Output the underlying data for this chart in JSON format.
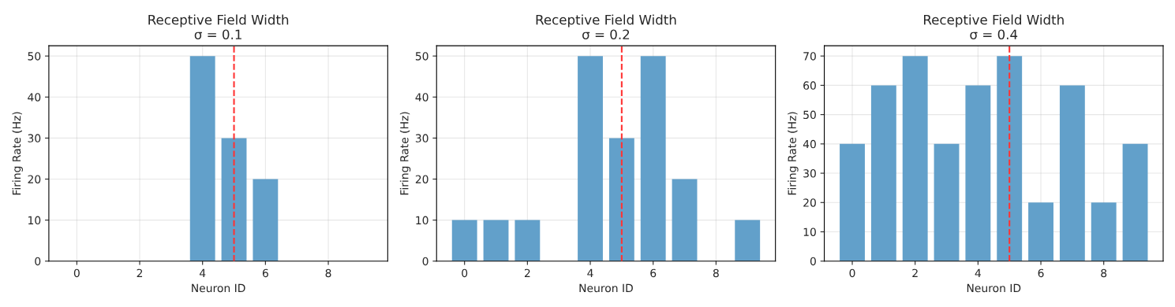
{
  "chart_data": [
    {
      "type": "bar",
      "title": "Receptive Field Width",
      "subtitle": "σ = 0.1",
      "xlabel": "Neuron ID",
      "ylabel": "Firing Rate (Hz)",
      "x": [
        0,
        1,
        2,
        3,
        4,
        5,
        6,
        7,
        8,
        9
      ],
      "values": [
        0,
        0,
        0,
        0,
        50,
        30,
        20,
        0,
        0,
        0
      ],
      "color": "#62a0ca",
      "xlim": [
        -0.89,
        9.89
      ],
      "xticks": [
        0,
        2,
        4,
        6,
        8
      ],
      "ylim": [
        0,
        52.5
      ],
      "yticks": [
        0,
        10,
        20,
        30,
        40,
        50
      ],
      "grid": true,
      "ref_lines": [
        {
          "axis": "x",
          "value": 5,
          "color": "#ff3333",
          "line_style": "dashed"
        }
      ]
    },
    {
      "type": "bar",
      "title": "Receptive Field Width",
      "subtitle": "σ = 0.2",
      "xlabel": "Neuron ID",
      "ylabel": "Firing Rate (Hz)",
      "x": [
        0,
        1,
        2,
        3,
        4,
        5,
        6,
        7,
        8,
        9
      ],
      "values": [
        10,
        10,
        10,
        0,
        50,
        30,
        50,
        20,
        0,
        10
      ],
      "color": "#62a0ca",
      "xlim": [
        -0.89,
        9.89
      ],
      "xticks": [
        0,
        2,
        4,
        6,
        8
      ],
      "ylim": [
        0,
        52.5
      ],
      "yticks": [
        0,
        10,
        20,
        30,
        40,
        50
      ],
      "grid": true,
      "ref_lines": [
        {
          "axis": "x",
          "value": 5,
          "color": "#ff3333",
          "line_style": "dashed"
        }
      ]
    },
    {
      "type": "bar",
      "title": "Receptive Field Width",
      "subtitle": "σ = 0.4",
      "xlabel": "Neuron ID",
      "ylabel": "Firing Rate (Hz)",
      "x": [
        0,
        1,
        2,
        3,
        4,
        5,
        6,
        7,
        8,
        9
      ],
      "values": [
        40,
        60,
        70,
        40,
        60,
        70,
        20,
        60,
        20,
        40
      ],
      "color": "#62a0ca",
      "xlim": [
        -0.89,
        9.89
      ],
      "xticks": [
        0,
        2,
        4,
        6,
        8
      ],
      "ylim": [
        0,
        73.5
      ],
      "yticks": [
        0,
        10,
        20,
        30,
        40,
        50,
        60,
        70
      ],
      "grid": true,
      "ref_lines": [
        {
          "axis": "x",
          "value": 5,
          "color": "#ff3333",
          "line_style": "dashed"
        }
      ]
    }
  ]
}
